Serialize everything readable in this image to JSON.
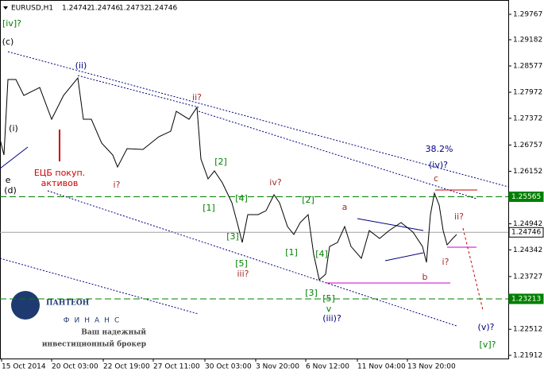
{
  "header": {
    "symbol": "EURUSD,H1",
    "ohlc": [
      1.24742,
      1.24746,
      1.24732,
      1.24746
    ]
  },
  "chart_data": {
    "type": "line",
    "x": [
      0,
      5,
      10,
      20,
      30,
      40,
      50,
      65,
      80,
      98,
      105,
      115,
      128,
      142,
      148,
      160,
      180,
      200,
      215,
      222,
      238,
      248,
      253,
      262,
      270,
      280,
      292,
      300,
      305,
      312,
      325,
      335,
      345,
      352,
      362,
      370,
      378,
      388,
      395,
      402,
      410,
      415,
      425,
      434,
      442,
      455,
      465,
      478,
      490,
      505,
      520,
      532,
      537,
      542,
      547,
      553,
      558,
      563,
      570,
      575
    ],
    "series": [
      {
        "color": "#000000",
        "values": [
          1.26892,
          1.26526,
          1.28266,
          1.28266,
          1.27899,
          1.27991,
          1.28082,
          1.2735,
          1.27899,
          1.28302,
          1.2735,
          1.2735,
          1.26801,
          1.26526,
          1.26251,
          1.26673,
          1.26654,
          1.26947,
          1.27075,
          1.27533,
          1.2735,
          1.27625,
          1.26435,
          1.25977,
          1.2616,
          1.25885,
          1.25427,
          1.24878,
          1.24512,
          1.25153,
          1.25153,
          1.25244,
          1.25611,
          1.25427,
          1.24878,
          1.24695,
          1.2497,
          1.25153,
          1.24237,
          1.23651,
          1.2378,
          1.2442,
          1.24512,
          1.24878,
          1.2442,
          1.24146,
          1.24787,
          1.24604,
          1.24787,
          1.2497,
          1.2475,
          1.2442,
          1.24054,
          1.25153,
          1.25647,
          1.25373,
          1.24787,
          1.24457,
          1.24604,
          1.24695
        ]
      }
    ],
    "xlim": [
      0,
      640
    ],
    "xticks": [
      {
        "value": 2,
        "label": "15 Oct 2014"
      },
      {
        "value": 65,
        "label": "20 Oct 03:00"
      },
      {
        "value": 130,
        "label": "22 Oct 19:00"
      },
      {
        "value": 193,
        "label": "27 Oct 11:00"
      },
      {
        "value": 258,
        "label": "30 Oct 03:00"
      },
      {
        "value": 322,
        "label": "3 Nov 20:00"
      },
      {
        "value": 385,
        "label": "6 Nov 12:00"
      },
      {
        "value": 450,
        "label": "11 Nov 04:00"
      },
      {
        "value": 513,
        "label": "13 Nov 20:00"
      }
    ],
    "ylim": [
      1.21839,
      1.30097
    ],
    "yticks": [
      1.29767,
      1.29182,
      1.28577,
      1.27972,
      1.27372,
      1.26757,
      1.26152,
      1.24942,
      1.24342,
      1.23727,
      1.22512,
      1.21912
    ],
    "levels": [
      {
        "value": 1.25565,
        "color": "#008000"
      },
      {
        "value": 1.24746,
        "color": "#a0a0a0"
      },
      {
        "value": 1.23213,
        "color": "#008000"
      }
    ],
    "annotations": [
      {
        "text": "[iv]?",
        "x": 15,
        "y": 1.29547,
        "color": "#008000"
      },
      {
        "text": "(c)",
        "x": 10,
        "y": 1.29126,
        "color": "#000000"
      },
      {
        "text": "(ii)",
        "x": 102,
        "y": 1.28577,
        "color": "#000080"
      },
      {
        "text": "ii?",
        "x": 248,
        "y": 1.27844,
        "color": "#a52a2a"
      },
      {
        "text": "(i)",
        "x": 17,
        "y": 1.2713,
        "color": "#000000"
      },
      {
        "text": "e",
        "x": 10,
        "y": 1.2594,
        "color": "#000000"
      },
      {
        "text": "(d)",
        "x": 13,
        "y": 1.25702,
        "color": "#000000"
      },
      {
        "text": "ЕЦБ покуп.",
        "x": 75,
        "y": 1.26105,
        "color": "#cc0000"
      },
      {
        "text": "активов",
        "x": 75,
        "y": 1.25867,
        "color": "#cc0000"
      },
      {
        "text": "i?",
        "x": 147,
        "y": 1.2583,
        "color": "#a52a2a"
      },
      {
        "text": "[2]",
        "x": 278,
        "y": 1.26361,
        "color": "#008000"
      },
      {
        "text": "[1]",
        "x": 263,
        "y": 1.25299,
        "color": "#008000"
      },
      {
        "text": "[4]",
        "x": 304,
        "y": 1.25519,
        "color": "#008000"
      },
      {
        "text": "[3]",
        "x": 293,
        "y": 1.2464,
        "color": "#008000"
      },
      {
        "text": "[5]",
        "x": 304,
        "y": 1.24017,
        "color": "#008000"
      },
      {
        "text": "iii?",
        "x": 306,
        "y": 1.2378,
        "color": "#a52a2a"
      },
      {
        "text": "iv?",
        "x": 347,
        "y": 1.25885,
        "color": "#a52a2a"
      },
      {
        "text": "[2]",
        "x": 388,
        "y": 1.25482,
        "color": "#008000"
      },
      {
        "text": "[1]",
        "x": 367,
        "y": 1.24274,
        "color": "#008000"
      },
      {
        "text": "[4]",
        "x": 405,
        "y": 1.24237,
        "color": "#008000"
      },
      {
        "text": "[3]",
        "x": 392,
        "y": 1.2334,
        "color": "#008000"
      },
      {
        "text": "[5]",
        "x": 414,
        "y": 1.23212,
        "color": "#008000"
      },
      {
        "text": "v",
        "x": 414,
        "y": 1.22974,
        "color": "#008000"
      },
      {
        "text": "(iii)?",
        "x": 418,
        "y": 1.22754,
        "color": "#000080"
      },
      {
        "text": "a",
        "x": 434,
        "y": 1.25318,
        "color": "#a52a2a"
      },
      {
        "text": "b",
        "x": 535,
        "y": 1.23706,
        "color": "#a52a2a"
      },
      {
        "text": "c",
        "x": 549,
        "y": 1.25977,
        "color": "#a52a2a"
      },
      {
        "text": "38.2%",
        "x": 553,
        "y": 1.26654,
        "color": "#000080"
      },
      {
        "text": "(iv)?",
        "x": 552,
        "y": 1.26288,
        "color": "#000080"
      },
      {
        "text": "ii?",
        "x": 578,
        "y": 1.25098,
        "color": "#a52a2a"
      },
      {
        "text": "i?",
        "x": 561,
        "y": 1.24054,
        "color": "#a52a2a"
      },
      {
        "text": "(v)?",
        "x": 612,
        "y": 1.22553,
        "color": "#000080"
      },
      {
        "text": "[v]?",
        "x": 614,
        "y": 1.2215,
        "color": "#008000"
      }
    ]
  },
  "logo": {
    "name": "ПАНТЕОН",
    "sub": "ФИНАНС",
    "slogan": [
      "Ваш надежный",
      "инвестиционный брокер"
    ]
  }
}
